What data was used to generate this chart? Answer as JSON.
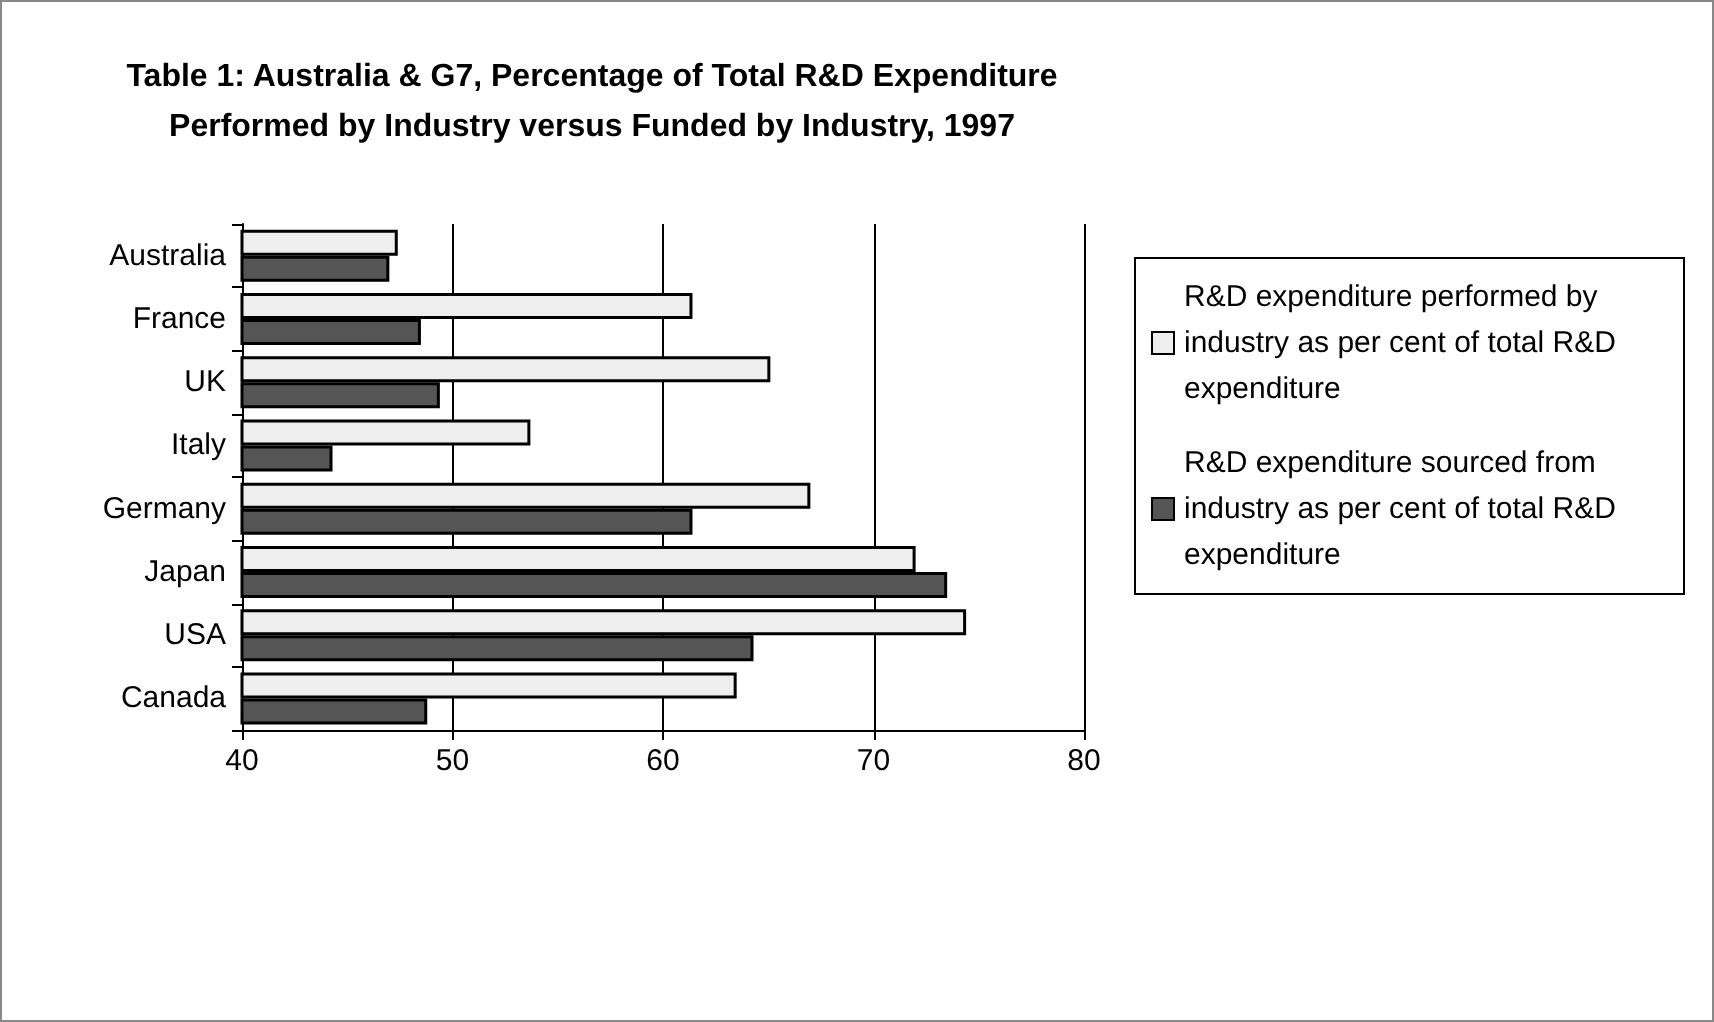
{
  "chart_data": {
    "type": "bar",
    "orientation": "horizontal",
    "title": "Table 1: Australia & G7, Percentage of Total R&D Expenditure\nPerformed by Industry versus Funded by Industry, 1997",
    "categories": [
      "Australia",
      "France",
      "UK",
      "Italy",
      "Germany",
      "Japan",
      "USA",
      "Canada"
    ],
    "series": [
      {
        "name": "R&D expenditure performed by industry as per cent of total R&D expenditure",
        "color": "#eeeeee",
        "values": [
          47.4,
          61.4,
          65.1,
          53.7,
          67.0,
          72.0,
          74.4,
          63.5
        ]
      },
      {
        "name": "R&D expenditure sourced from industry as per cent of total R&D expenditure",
        "color": "#555555",
        "values": [
          47.0,
          48.5,
          49.4,
          44.3,
          61.4,
          73.5,
          64.3,
          48.8
        ]
      }
    ],
    "xlim": [
      40,
      80
    ],
    "xticks": [
      40,
      50,
      60,
      70,
      80
    ],
    "grid": "x",
    "legend": "right"
  }
}
